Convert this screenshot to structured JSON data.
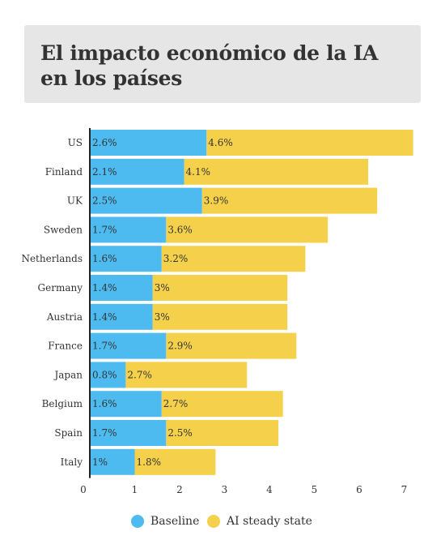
{
  "title": "El impacto económico de la IA en los países",
  "colors": {
    "baseline": "#4dbbf0",
    "ai": "#f5d04a",
    "axis": "#222222"
  },
  "legend": {
    "baseline_label": "Baseline",
    "ai_label": "AI steady state"
  },
  "chart_data": {
    "type": "bar",
    "orientation": "horizontal",
    "stacked": true,
    "title": "El impacto económico de la IA en los países",
    "categories": [
      "US",
      "Finland",
      "UK",
      "Sweden",
      "Netherlands",
      "Germany",
      "Austria",
      "France",
      "Japan",
      "Belgium",
      "Spain",
      "Italy"
    ],
    "series": [
      {
        "name": "Baseline",
        "values": [
          2.6,
          2.1,
          2.5,
          1.7,
          1.6,
          1.4,
          1.4,
          1.7,
          0.8,
          1.6,
          1.7,
          1.0
        ],
        "labels": [
          "2.6%",
          "2.1%",
          "2.5%",
          "1.7%",
          "1.6%",
          "1.4%",
          "1.4%",
          "1.7%",
          "0.8%",
          "1.6%",
          "1.7%",
          "1%"
        ]
      },
      {
        "name": "AI steady state",
        "values": [
          4.6,
          4.1,
          3.9,
          3.6,
          3.2,
          3.0,
          3.0,
          2.9,
          2.7,
          2.7,
          2.5,
          1.8
        ],
        "labels": [
          "4.6%",
          "4.1%",
          "3.9%",
          "3.6%",
          "3.2%",
          "3%",
          "3%",
          "2.9%",
          "2.7%",
          "2.7%",
          "2.5%",
          "1.8%"
        ]
      }
    ],
    "xlim": [
      0,
      7.2
    ],
    "xticks": [
      0,
      1,
      2,
      3,
      4,
      5,
      6,
      7
    ],
    "grid": false,
    "legend_position": "bottom-center"
  }
}
